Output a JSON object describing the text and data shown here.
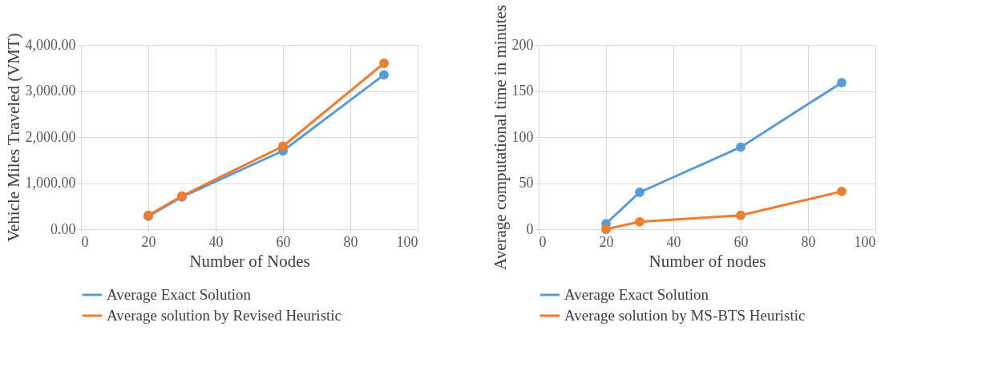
{
  "chart_data": [
    {
      "type": "line",
      "xlabel": "Number of Nodes",
      "ylabel": "Vehicle Miles Traveled (VMT)",
      "x": [
        20,
        30,
        60,
        90
      ],
      "xlim": [
        0,
        100
      ],
      "xticks": [
        0,
        20,
        40,
        60,
        80,
        100
      ],
      "ylim": [
        0,
        4000
      ],
      "yticks": [
        {
          "value": 0,
          "label": "0.00"
        },
        {
          "value": 1000,
          "label": "1,000.00"
        },
        {
          "value": 2000,
          "label": "2,000.00"
        },
        {
          "value": 3000,
          "label": "3,000.00"
        },
        {
          "value": 4000,
          "label": "4,000.00"
        }
      ],
      "grid": true,
      "legend": "bottom",
      "marker": "circle",
      "line_style": "solid",
      "series": [
        {
          "name": "Average Exact Solution",
          "color": "#5b9bd5",
          "values": [
            280,
            700,
            1700,
            3350
          ]
        },
        {
          "name": "Average solution by Revised Heuristic",
          "color": "#ed7d31",
          "values": [
            300,
            720,
            1800,
            3600
          ]
        }
      ]
    },
    {
      "type": "line",
      "xlabel": "Number of nodes",
      "ylabel": "Average computational time in minutes",
      "x": [
        20,
        30,
        60,
        90
      ],
      "xlim": [
        0,
        100
      ],
      "xticks": [
        0,
        20,
        40,
        60,
        80,
        100
      ],
      "ylim": [
        0,
        200
      ],
      "yticks": [
        0,
        50,
        100,
        150,
        200
      ],
      "grid": true,
      "legend": "bottom",
      "marker": "circle",
      "line_style": "solid",
      "series": [
        {
          "name": "Average Exact Solution",
          "color": "#5b9bd5",
          "values": [
            6,
            40,
            89,
            159
          ]
        },
        {
          "name": "Average solution by MS-BTS Heuristic",
          "color": "#ed7d31",
          "values": [
            0,
            8,
            15,
            41
          ]
        }
      ]
    }
  ]
}
